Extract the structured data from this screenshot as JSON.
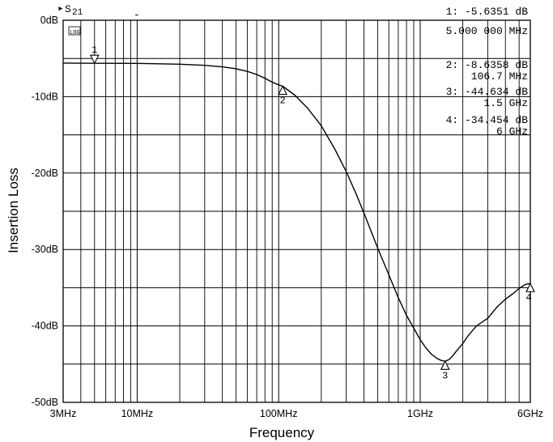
{
  "chart_data": {
    "type": "line",
    "trace_label": "S21",
    "trace_label_main": "S",
    "trace_label_sub": "21",
    "trace_note": "LOG MAG",
    "xlabel": "Frequency",
    "ylabel": "Insertion Loss",
    "x_scale": "log",
    "xlim_mhz": [
      3,
      6000
    ],
    "ylim_db": [
      -50,
      0
    ],
    "x_ticks": [
      {
        "value": 3,
        "label": "3MHz"
      },
      {
        "value": 10,
        "label": "10MHz"
      },
      {
        "value": 100,
        "label": "100MHz"
      },
      {
        "value": 1000,
        "label": "1GHz"
      },
      {
        "value": 6000,
        "label": "6GHz"
      }
    ],
    "y_ticks": [
      {
        "value": 0,
        "label": "0dB"
      },
      {
        "value": -10,
        "label": "-10dB"
      },
      {
        "value": -20,
        "label": "-20dB"
      },
      {
        "value": -30,
        "label": "-30dB"
      },
      {
        "value": -40,
        "label": "-40dB"
      },
      {
        "value": -50,
        "label": "-50dB"
      }
    ],
    "y_minor_step_db": 5,
    "grid": true,
    "series": [
      {
        "name": "S21",
        "x_mhz": [
          3,
          5,
          10,
          20,
          30,
          40,
          50,
          60,
          70,
          80,
          90,
          100,
          106.7,
          130,
          160,
          200,
          250,
          300,
          350,
          400,
          500,
          600,
          700,
          800,
          900,
          1000,
          1100,
          1200,
          1300,
          1400,
          1500,
          1600,
          1700,
          1800,
          2000,
          2200,
          2500,
          3000,
          3500,
          4000,
          4500,
          5000,
          5500,
          6000
        ],
        "y_db": [
          -5.6,
          -5.6351,
          -5.65,
          -5.75,
          -5.9,
          -6.1,
          -6.35,
          -6.7,
          -7.1,
          -7.6,
          -8.1,
          -8.45,
          -8.6358,
          -9.8,
          -11.5,
          -13.8,
          -16.9,
          -19.8,
          -22.6,
          -25.2,
          -29.8,
          -33.3,
          -36.3,
          -38.6,
          -40.3,
          -41.8,
          -42.9,
          -43.7,
          -44.2,
          -44.5,
          -44.634,
          -44.4,
          -43.9,
          -43.3,
          -42.3,
          -41.2,
          -40.0,
          -39.0,
          -37.5,
          -36.5,
          -35.8,
          -35.1,
          -34.6,
          -34.454
        ]
      }
    ],
    "markers": [
      {
        "id": "1",
        "label": "1",
        "x_mhz": 5,
        "y_db": -5.6351,
        "freq_text": "5.000 000 MHz",
        "value_text": "-5.6351 dB",
        "readout_prefix": "1:"
      },
      {
        "id": "2",
        "label": "2",
        "x_mhz": 106.7,
        "y_db": -8.6358,
        "freq_text": "106.7 MHz",
        "value_text": "-8.6358 dB",
        "readout_prefix": "2:"
      },
      {
        "id": "3",
        "label": "3",
        "x_mhz": 1500,
        "y_db": -44.634,
        "freq_text": "1.5 GHz",
        "value_text": "-44.634 dB",
        "readout_prefix": "3:"
      },
      {
        "id": "4",
        "label": "4",
        "x_mhz": 6000,
        "y_db": -34.454,
        "freq_text": "6 GHz",
        "value_text": "-34.454 dB",
        "readout_prefix": "4:"
      }
    ]
  }
}
